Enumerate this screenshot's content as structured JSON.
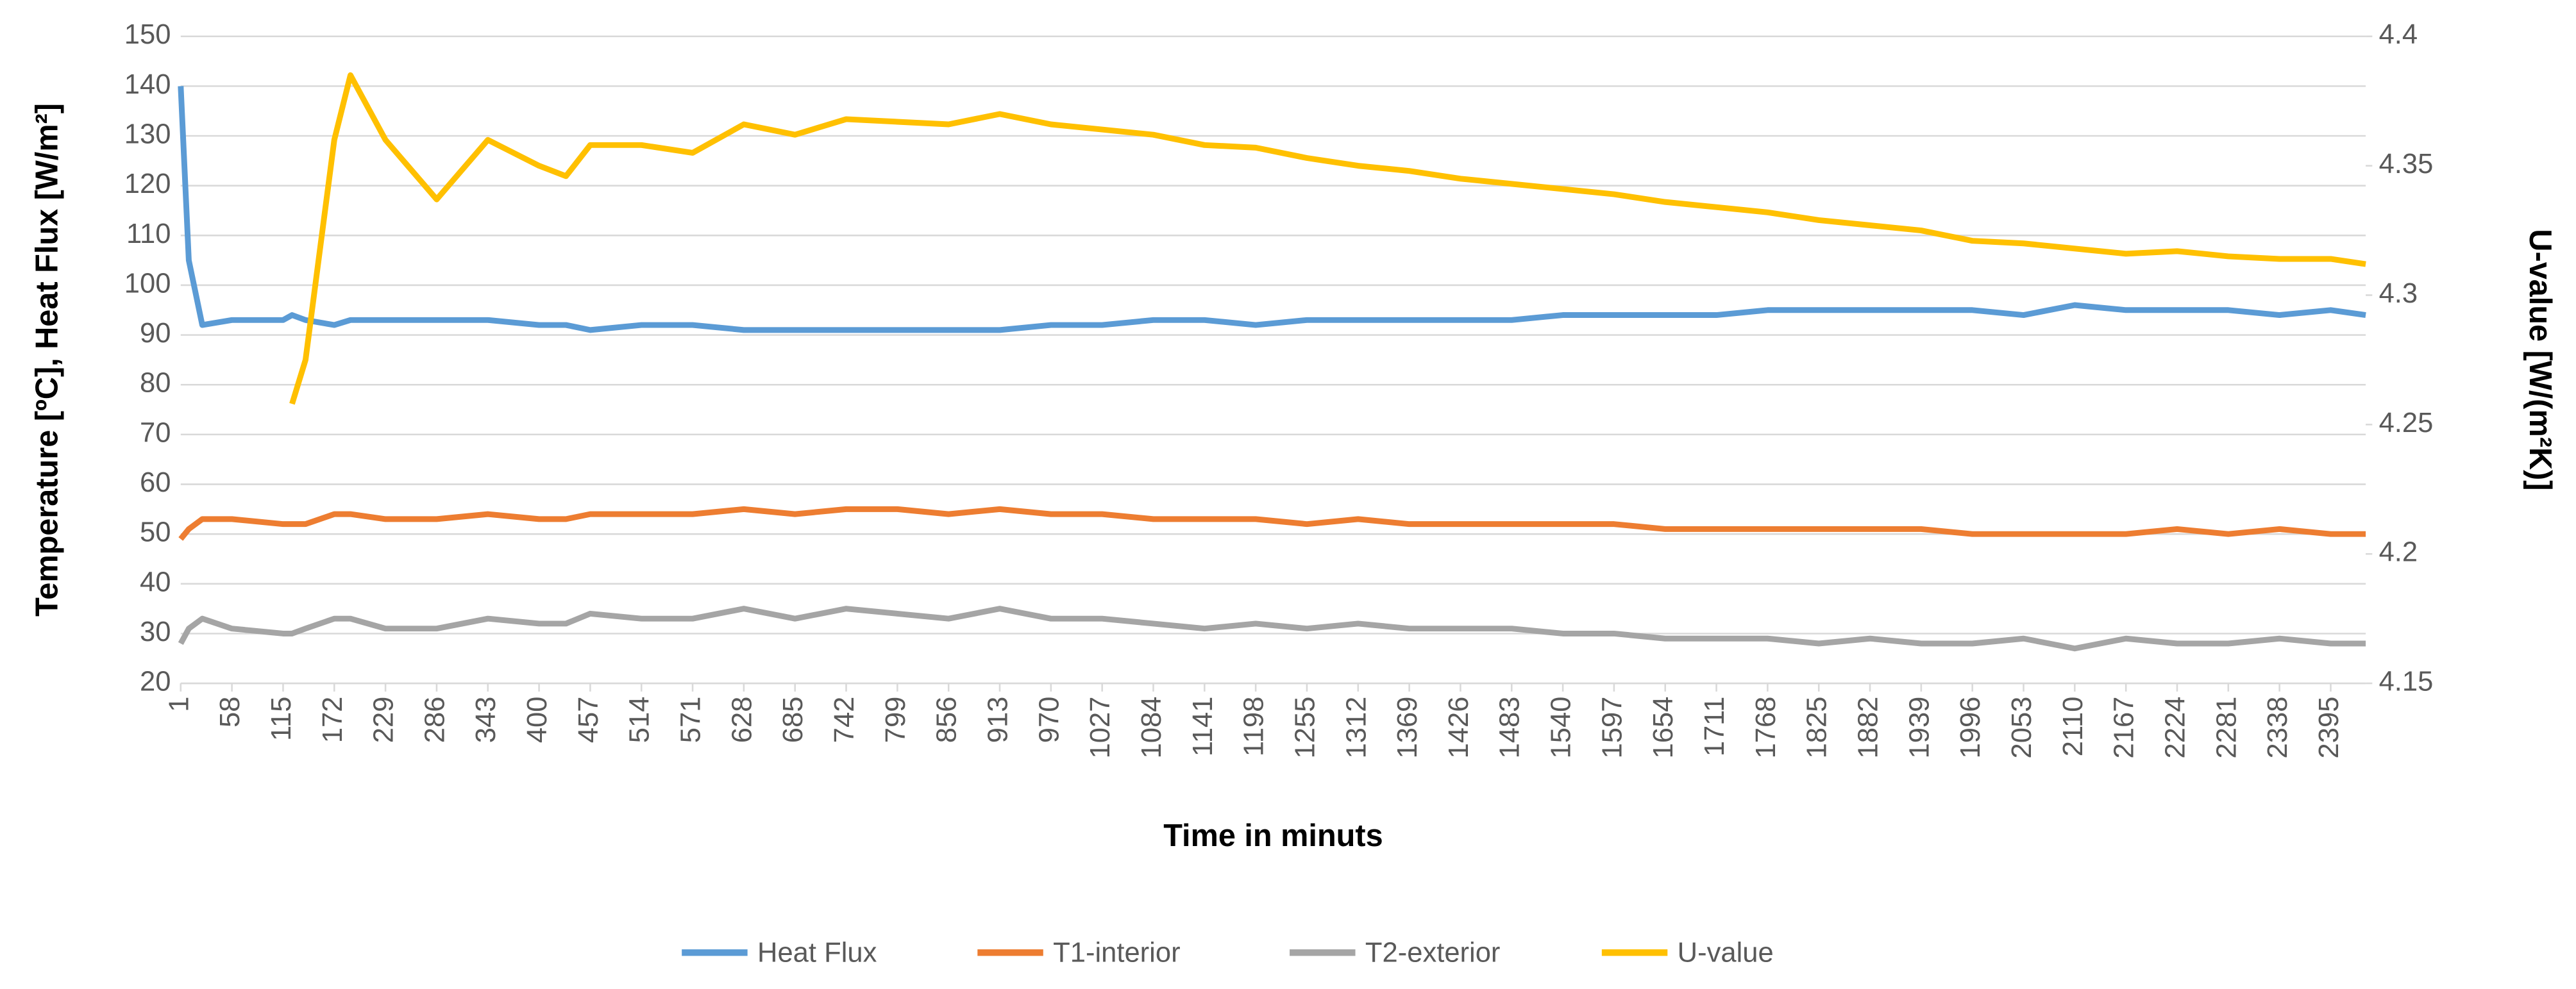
{
  "chart_data": {
    "type": "line",
    "x_label": "Time in minuts",
    "y_label": "Temperature [ºC], Heat Flux [W/m²]",
    "y2_label": "U-value [W/(m²K)]",
    "x": [
      1,
      10,
      25,
      58,
      115,
      125,
      140,
      172,
      190,
      229,
      286,
      343,
      400,
      430,
      457,
      514,
      571,
      628,
      685,
      742,
      799,
      856,
      913,
      970,
      1027,
      1084,
      1141,
      1198,
      1255,
      1312,
      1369,
      1426,
      1483,
      1540,
      1597,
      1654,
      1711,
      1768,
      1825,
      1882,
      1939,
      1996,
      2053,
      2110,
      2167,
      2224,
      2281,
      2338,
      2395,
      2434
    ],
    "series": [
      {
        "name": "Heat Flux",
        "color": "#5b9bd5",
        "values": [
          140,
          105,
          92,
          93,
          93,
          94,
          93,
          92,
          93,
          93,
          93,
          93,
          92,
          92,
          91,
          92,
          92,
          91,
          91,
          91,
          91,
          91,
          91,
          92,
          92,
          93,
          93,
          92,
          93,
          93,
          93,
          93,
          93,
          94,
          94,
          94,
          94,
          95,
          95,
          95,
          95,
          95,
          94,
          96,
          95,
          95,
          95,
          94,
          95,
          94
        ]
      },
      {
        "name": "T1-interior",
        "color": "#ed7d31",
        "values": [
          49,
          51,
          53,
          53,
          52,
          52,
          52,
          54,
          54,
          53,
          53,
          54,
          53,
          53,
          54,
          54,
          54,
          55,
          54,
          55,
          55,
          54,
          55,
          54,
          54,
          53,
          53,
          53,
          52,
          53,
          52,
          52,
          52,
          52,
          52,
          51,
          51,
          51,
          51,
          51,
          51,
          50,
          50,
          50,
          50,
          51,
          50,
          51,
          50,
          50
        ]
      },
      {
        "name": "T2-exterior",
        "color": "#a5a5a5",
        "values": [
          28,
          31,
          33,
          31,
          30,
          30,
          31,
          33,
          33,
          31,
          31,
          33,
          32,
          32,
          34,
          33,
          33,
          35,
          33,
          35,
          34,
          33,
          35,
          33,
          33,
          32,
          31,
          32,
          31,
          32,
          31,
          31,
          31,
          30,
          30,
          29,
          29,
          29,
          28,
          29,
          28,
          28,
          29,
          27,
          29,
          28,
          28,
          29,
          28,
          28
        ]
      },
      {
        "name": "U-value",
        "color": "#ffc000",
        "axis": "y2",
        "values": [
          null,
          null,
          null,
          null,
          null,
          4.258,
          4.275,
          4.36,
          4.385,
          4.36,
          4.337,
          4.36,
          4.35,
          4.346,
          4.358,
          4.358,
          4.355,
          4.366,
          4.362,
          4.368,
          4.367,
          4.366,
          4.37,
          4.366,
          4.364,
          4.362,
          4.358,
          4.357,
          4.353,
          4.35,
          4.348,
          4.345,
          4.343,
          4.341,
          4.339,
          4.336,
          4.334,
          4.332,
          4.329,
          4.327,
          4.325,
          4.321,
          4.32,
          4.318,
          4.316,
          4.317,
          4.315,
          4.314,
          4.314,
          4.312
        ]
      }
    ],
    "xlim": [
      1,
      2434
    ],
    "xticks": [
      1,
      58,
      115,
      172,
      229,
      286,
      343,
      400,
      457,
      514,
      571,
      628,
      685,
      742,
      799,
      856,
      913,
      970,
      1027,
      1084,
      1141,
      1198,
      1255,
      1312,
      1369,
      1426,
      1483,
      1540,
      1597,
      1654,
      1711,
      1768,
      1825,
      1882,
      1939,
      1996,
      2053,
      2110,
      2167,
      2224,
      2281,
      2338,
      2395
    ],
    "ylim": [
      20,
      150
    ],
    "yticks": [
      20,
      30,
      40,
      50,
      60,
      70,
      80,
      90,
      100,
      110,
      120,
      130,
      140,
      150
    ],
    "y2lim": [
      4.15,
      4.4
    ],
    "y2ticks": [
      4.15,
      4.2,
      4.25,
      4.3,
      4.35,
      4.4
    ],
    "grid": true,
    "legend": "bottom"
  }
}
